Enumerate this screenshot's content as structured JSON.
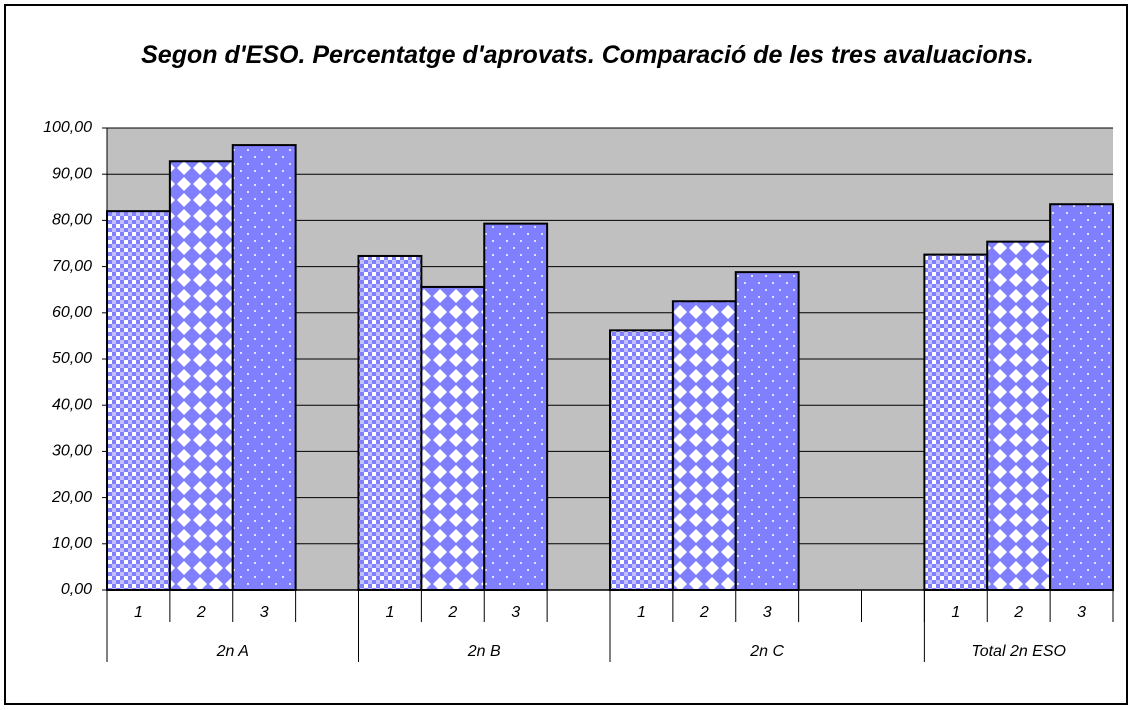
{
  "chart_data": {
    "type": "bar",
    "title": "Segon d'ESO. Percentatge d'aprovats.  Comparació de les tres avaluacions.",
    "categories": [
      "1",
      "2",
      "3",
      null,
      "1",
      "2",
      "3",
      null,
      "1",
      "2",
      "3",
      null,
      null,
      "1",
      "2",
      "3"
    ],
    "values": [
      82.0,
      92.8,
      96.3,
      null,
      72.3,
      65.6,
      79.3,
      null,
      56.2,
      62.5,
      68.8,
      null,
      null,
      72.6,
      75.4,
      83.5
    ],
    "groups": [
      {
        "label": "2n A",
        "span": 4
      },
      {
        "label": "2n B",
        "span": 4
      },
      {
        "label": "2n C",
        "span": 5
      },
      {
        "label": "Total 2n ESO",
        "span": 3
      }
    ],
    "color": "#8080ff",
    "ylim": [
      0,
      100
    ],
    "yticks": [
      {
        "value": 0,
        "label": "0,00"
      },
      {
        "value": 10,
        "label": "10,00"
      },
      {
        "value": 20,
        "label": "20,00"
      },
      {
        "value": 30,
        "label": "30,00"
      },
      {
        "value": 40,
        "label": "40,00"
      },
      {
        "value": 50,
        "label": "50,00"
      },
      {
        "value": 60,
        "label": "60,00"
      },
      {
        "value": 70,
        "label": "70,00"
      },
      {
        "value": 80,
        "label": "80,00"
      },
      {
        "value": 90,
        "label": "90,00"
      },
      {
        "value": 100,
        "label": "100,00"
      }
    ],
    "grid": true
  }
}
